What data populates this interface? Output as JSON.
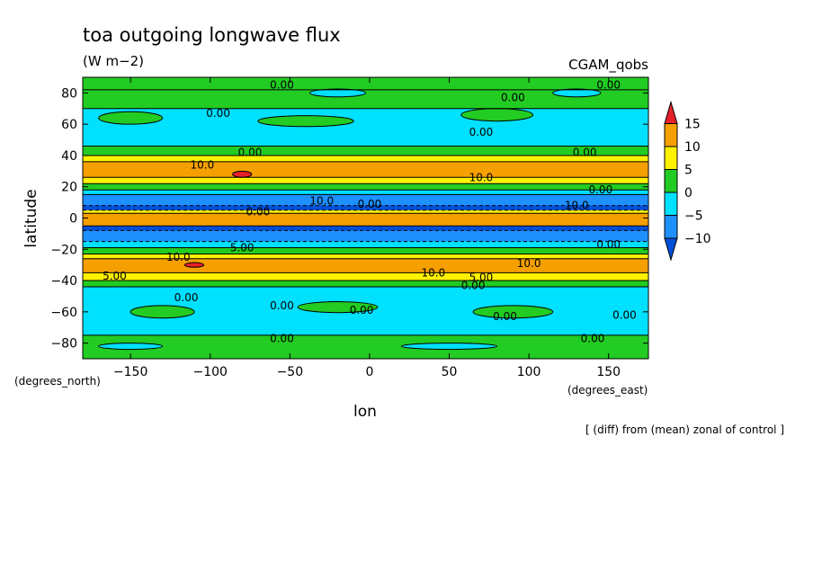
{
  "chart_data": {
    "type": "heatmap",
    "title": "toa outgoing longwave flux",
    "subtitle": "(W m−2)",
    "dataset": "CGAM_qobs",
    "xlabel": "lon",
    "ylabel": "latitude",
    "x_unit": "(degrees_east)",
    "y_unit": "(degrees_north)",
    "note": "[ (diff) from (mean) zonal of control ]",
    "xlim": [
      -180,
      175
    ],
    "ylim": [
      -90,
      90
    ],
    "x_ticks": [
      -150,
      -100,
      -50,
      0,
      50,
      100,
      150
    ],
    "x_tick_labels": [
      "−150",
      "−100",
      "−50",
      "0",
      "50",
      "100",
      "150"
    ],
    "y_ticks": [
      80,
      60,
      40,
      20,
      0,
      -20,
      -40,
      -60,
      -80
    ],
    "y_tick_labels": [
      "80",
      "60",
      "40",
      "20",
      "0",
      "−20",
      "−40",
      "−60",
      "−80"
    ],
    "colorbar": {
      "levels": [
        15,
        10,
        5,
        0,
        -5,
        -10
      ],
      "level_labels": [
        "15",
        "10",
        "5",
        "0",
        "−5",
        "−10"
      ],
      "colors": [
        "#e8202a",
        "#f5a000",
        "#fff200",
        "#22cc22",
        "#00e0ff",
        "#1e90ff",
        "#0050d8"
      ]
    },
    "zonal_bands": [
      {
        "lat_from": 90,
        "lat_to": 82,
        "class": 3
      },
      {
        "lat_from": 82,
        "lat_to": 70,
        "class": 3
      },
      {
        "lat_from": 70,
        "lat_to": 46,
        "class": 4
      },
      {
        "lat_from": 46,
        "lat_to": 40,
        "class": 3
      },
      {
        "lat_from": 40,
        "lat_to": 36,
        "class": 2
      },
      {
        "lat_from": 36,
        "lat_to": 26,
        "class": 1
      },
      {
        "lat_from": 26,
        "lat_to": 22,
        "class": 2
      },
      {
        "lat_from": 22,
        "lat_to": 18,
        "class": 3
      },
      {
        "lat_from": 18,
        "lat_to": 15,
        "class": 4
      },
      {
        "lat_from": 15,
        "lat_to": 8,
        "class": 5
      },
      {
        "lat_from": 8,
        "lat_to": 5,
        "class": 6
      },
      {
        "lat_from": 5,
        "lat_to": 3,
        "class": 2
      },
      {
        "lat_from": 3,
        "lat_to": -5,
        "class": 1
      },
      {
        "lat_from": -5,
        "lat_to": -8,
        "class": 6
      },
      {
        "lat_from": -8,
        "lat_to": -15,
        "class": 5
      },
      {
        "lat_from": -15,
        "lat_to": -19,
        "class": 4
      },
      {
        "lat_from": -19,
        "lat_to": -23,
        "class": 3
      },
      {
        "lat_from": -23,
        "lat_to": -26,
        "class": 2
      },
      {
        "lat_from": -26,
        "lat_to": -35,
        "class": 1
      },
      {
        "lat_from": -35,
        "lat_to": -40,
        "class": 2
      },
      {
        "lat_from": -40,
        "lat_to": -44,
        "class": 3
      },
      {
        "lat_from": -44,
        "lat_to": -75,
        "class": 4
      },
      {
        "lat_from": -75,
        "lat_to": -90,
        "class": 3
      }
    ],
    "patches": [
      {
        "lon": -150,
        "lat": 64,
        "dlon": 40,
        "dlat": 8,
        "class": 3
      },
      {
        "lon": -40,
        "lat": 62,
        "dlon": 60,
        "dlat": 7,
        "class": 3
      },
      {
        "lon": 80,
        "lat": 66,
        "dlon": 45,
        "dlat": 8,
        "class": 3
      },
      {
        "lon": -20,
        "lat": 80,
        "dlon": 35,
        "dlat": 5,
        "class": 4
      },
      {
        "lon": 130,
        "lat": 80,
        "dlon": 30,
        "dlat": 5,
        "class": 4
      },
      {
        "lon": -130,
        "lat": -60,
        "dlon": 40,
        "dlat": 8,
        "class": 3
      },
      {
        "lon": -20,
        "lat": -57,
        "dlon": 50,
        "dlat": 7,
        "class": 3
      },
      {
        "lon": 90,
        "lat": -60,
        "dlon": 50,
        "dlat": 8,
        "class": 3
      },
      {
        "lon": -150,
        "lat": -82,
        "dlon": 40,
        "dlat": 4,
        "class": 4
      },
      {
        "lon": 50,
        "lat": -82,
        "dlon": 60,
        "dlat": 4,
        "class": 4
      },
      {
        "lon": -80,
        "lat": 28,
        "dlon": 12,
        "dlat": 4,
        "class": 0
      },
      {
        "lon": -110,
        "lat": -30,
        "dlon": 12,
        "dlat": 3,
        "class": 0
      }
    ],
    "contour_labels": [
      {
        "text": "0.00",
        "lon": -55,
        "lat": 85
      },
      {
        "text": "0.00",
        "lon": 150,
        "lat": 85
      },
      {
        "text": "0.00",
        "lon": 90,
        "lat": 77
      },
      {
        "text": "0.00",
        "lon": -95,
        "lat": 67
      },
      {
        "text": "0.00",
        "lon": 70,
        "lat": 55
      },
      {
        "text": "0.00",
        "lon": -75,
        "lat": 42
      },
      {
        "text": "0.00",
        "lon": 135,
        "lat": 42
      },
      {
        "text": "10.0",
        "lon": -105,
        "lat": 34
      },
      {
        "text": "10.0",
        "lon": 70,
        "lat": 26
      },
      {
        "text": "0.00",
        "lon": 145,
        "lat": 18
      },
      {
        "text": "10.0",
        "lon": -30,
        "lat": 11
      },
      {
        "text": "0.00",
        "lon": 0,
        "lat": 9
      },
      {
        "text": "10.0",
        "lon": 130,
        "lat": 8
      },
      {
        "text": "0.00",
        "lon": -70,
        "lat": 4
      },
      {
        "text": "5.00",
        "lon": -80,
        "lat": -19
      },
      {
        "text": "0.00",
        "lon": 150,
        "lat": -17
      },
      {
        "text": "10.0",
        "lon": -120,
        "lat": -25
      },
      {
        "text": "5.00",
        "lon": -160,
        "lat": -37
      },
      {
        "text": "10.0",
        "lon": 100,
        "lat": -29
      },
      {
        "text": "10.0",
        "lon": 40,
        "lat": -35
      },
      {
        "text": "5.00",
        "lon": 70,
        "lat": -38
      },
      {
        "text": "0.00",
        "lon": 65,
        "lat": -43
      },
      {
        "text": "0.00",
        "lon": -115,
        "lat": -51
      },
      {
        "text": "0.00",
        "lon": -55,
        "lat": -56
      },
      {
        "text": "0.00",
        "lon": -5,
        "lat": -59
      },
      {
        "text": "0.00",
        "lon": 85,
        "lat": -63
      },
      {
        "text": "0.00",
        "lon": 160,
        "lat": -62
      },
      {
        "text": "0.00",
        "lon": -55,
        "lat": -77
      },
      {
        "text": "0.00",
        "lon": 140,
        "lat": -77
      }
    ]
  }
}
